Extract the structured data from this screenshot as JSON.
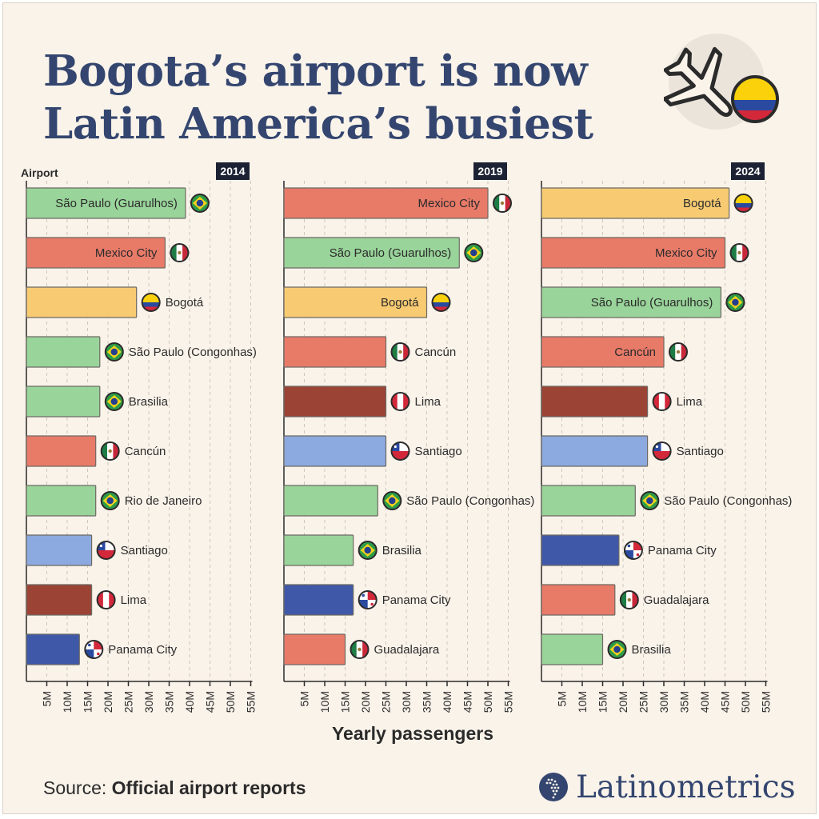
{
  "title_line1": "Bogota’s airport is now",
  "title_line2": "Latin America’s busiest",
  "y_axis_title": "Airport",
  "x_axis_title": "Yearly passengers",
  "source_prefix": "Source:",
  "source_text": "Official airport reports",
  "brand": "Latinometrics",
  "colors": {
    "background": "#faf3ea",
    "title": "#34466f",
    "Brazil": "#99d49a",
    "Mexico": "#e87a68",
    "Colombia": "#f8cb72",
    "Peru": "#9b4335",
    "Chile": "#8ca9e0",
    "Panama": "#3f59a8"
  },
  "chart_data": [
    {
      "type": "bar",
      "orientation": "horizontal",
      "year_label": "2014",
      "xlim": [
        0,
        55
      ],
      "ticks": [
        "5M",
        "10M",
        "15M",
        "20M",
        "25M",
        "30M",
        "35M",
        "40M",
        "45M",
        "50M",
        "55M"
      ],
      "bars": [
        {
          "airport": "São Paulo (Guarulhos)",
          "value": 39,
          "country": "Brazil"
        },
        {
          "airport": "Mexico City",
          "value": 34,
          "country": "Mexico"
        },
        {
          "airport": "Bogotá",
          "value": 27,
          "country": "Colombia"
        },
        {
          "airport": "São Paulo (Congonhas)",
          "value": 18,
          "country": "Brazil"
        },
        {
          "airport": "Brasilia",
          "value": 18,
          "country": "Brazil"
        },
        {
          "airport": "Cancún",
          "value": 17,
          "country": "Mexico"
        },
        {
          "airport": "Rio de Janeiro",
          "value": 17,
          "country": "Brazil"
        },
        {
          "airport": "Santiago",
          "value": 16,
          "country": "Chile"
        },
        {
          "airport": "Lima",
          "value": 16,
          "country": "Peru"
        },
        {
          "airport": "Panama City",
          "value": 13,
          "country": "Panama"
        }
      ]
    },
    {
      "type": "bar",
      "orientation": "horizontal",
      "year_label": "2019",
      "xlim": [
        0,
        55
      ],
      "ticks": [
        "5M",
        "10M",
        "15M",
        "20M",
        "25M",
        "30M",
        "35M",
        "40M",
        "45M",
        "50M",
        "55M"
      ],
      "bars": [
        {
          "airport": "Mexico City",
          "value": 50,
          "country": "Mexico"
        },
        {
          "airport": "São Paulo (Guarulhos)",
          "value": 43,
          "country": "Brazil"
        },
        {
          "airport": "Bogotá",
          "value": 35,
          "country": "Colombia"
        },
        {
          "airport": "Cancún",
          "value": 25,
          "country": "Mexico"
        },
        {
          "airport": "Lima",
          "value": 25,
          "country": "Peru"
        },
        {
          "airport": "Santiago",
          "value": 25,
          "country": "Chile"
        },
        {
          "airport": "São Paulo (Congonhas)",
          "value": 23,
          "country": "Brazil"
        },
        {
          "airport": "Brasilia",
          "value": 17,
          "country": "Brazil"
        },
        {
          "airport": "Panama City",
          "value": 17,
          "country": "Panama"
        },
        {
          "airport": "Guadalajara",
          "value": 15,
          "country": "Mexico"
        }
      ]
    },
    {
      "type": "bar",
      "orientation": "horizontal",
      "year_label": "2024",
      "xlim": [
        0,
        55
      ],
      "ticks": [
        "5M",
        "10M",
        "15M",
        "20M",
        "25M",
        "30M",
        "35M",
        "40M",
        "45M",
        "50M",
        "55M"
      ],
      "bars": [
        {
          "airport": "Bogotá",
          "value": 46,
          "country": "Colombia"
        },
        {
          "airport": "Mexico City",
          "value": 45,
          "country": "Mexico"
        },
        {
          "airport": "São Paulo (Guarulhos)",
          "value": 44,
          "country": "Brazil"
        },
        {
          "airport": "Cancún",
          "value": 30,
          "country": "Mexico"
        },
        {
          "airport": "Lima",
          "value": 26,
          "country": "Peru"
        },
        {
          "airport": "Santiago",
          "value": 26,
          "country": "Chile"
        },
        {
          "airport": "São Paulo (Congonhas)",
          "value": 23,
          "country": "Brazil"
        },
        {
          "airport": "Panama City",
          "value": 19,
          "country": "Panama"
        },
        {
          "airport": "Guadalajara",
          "value": 18,
          "country": "Mexico"
        },
        {
          "airport": "Brasilia",
          "value": 15,
          "country": "Brazil"
        }
      ]
    }
  ]
}
